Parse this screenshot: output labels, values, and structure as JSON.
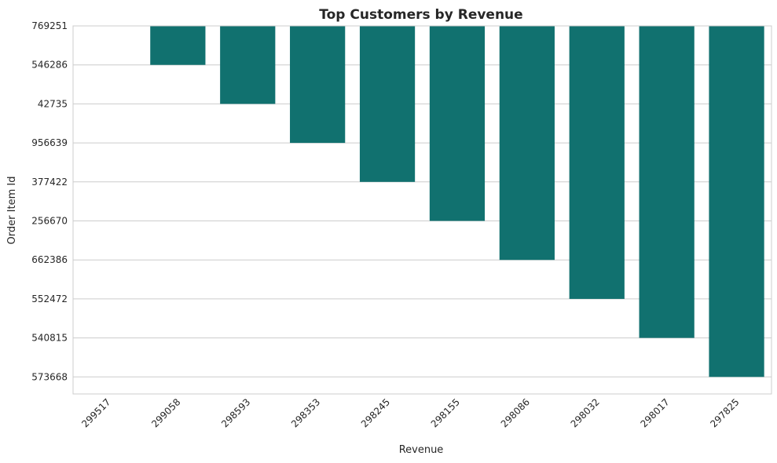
{
  "chart_data": {
    "type": "bar",
    "title": "Top Customers by Revenue",
    "xlabel": "Revenue",
    "ylabel": "Order Item Id",
    "categories": [
      "299517",
      "299058",
      "298593",
      "298353",
      "298245",
      "298155",
      "298086",
      "298032",
      "298017",
      "297825"
    ],
    "y_categories": [
      "769251",
      "546286",
      "42735",
      "956639",
      "377422",
      "256670",
      "662386",
      "552472",
      "540815",
      "573668"
    ],
    "values": [
      "769251",
      "546286",
      "42735",
      "956639",
      "377422",
      "256670",
      "662386",
      "552472",
      "540815",
      "573668"
    ],
    "orientation": "vertical-downward",
    "bar_color": "#11716f",
    "grid": "horizontal",
    "legend": "none"
  }
}
